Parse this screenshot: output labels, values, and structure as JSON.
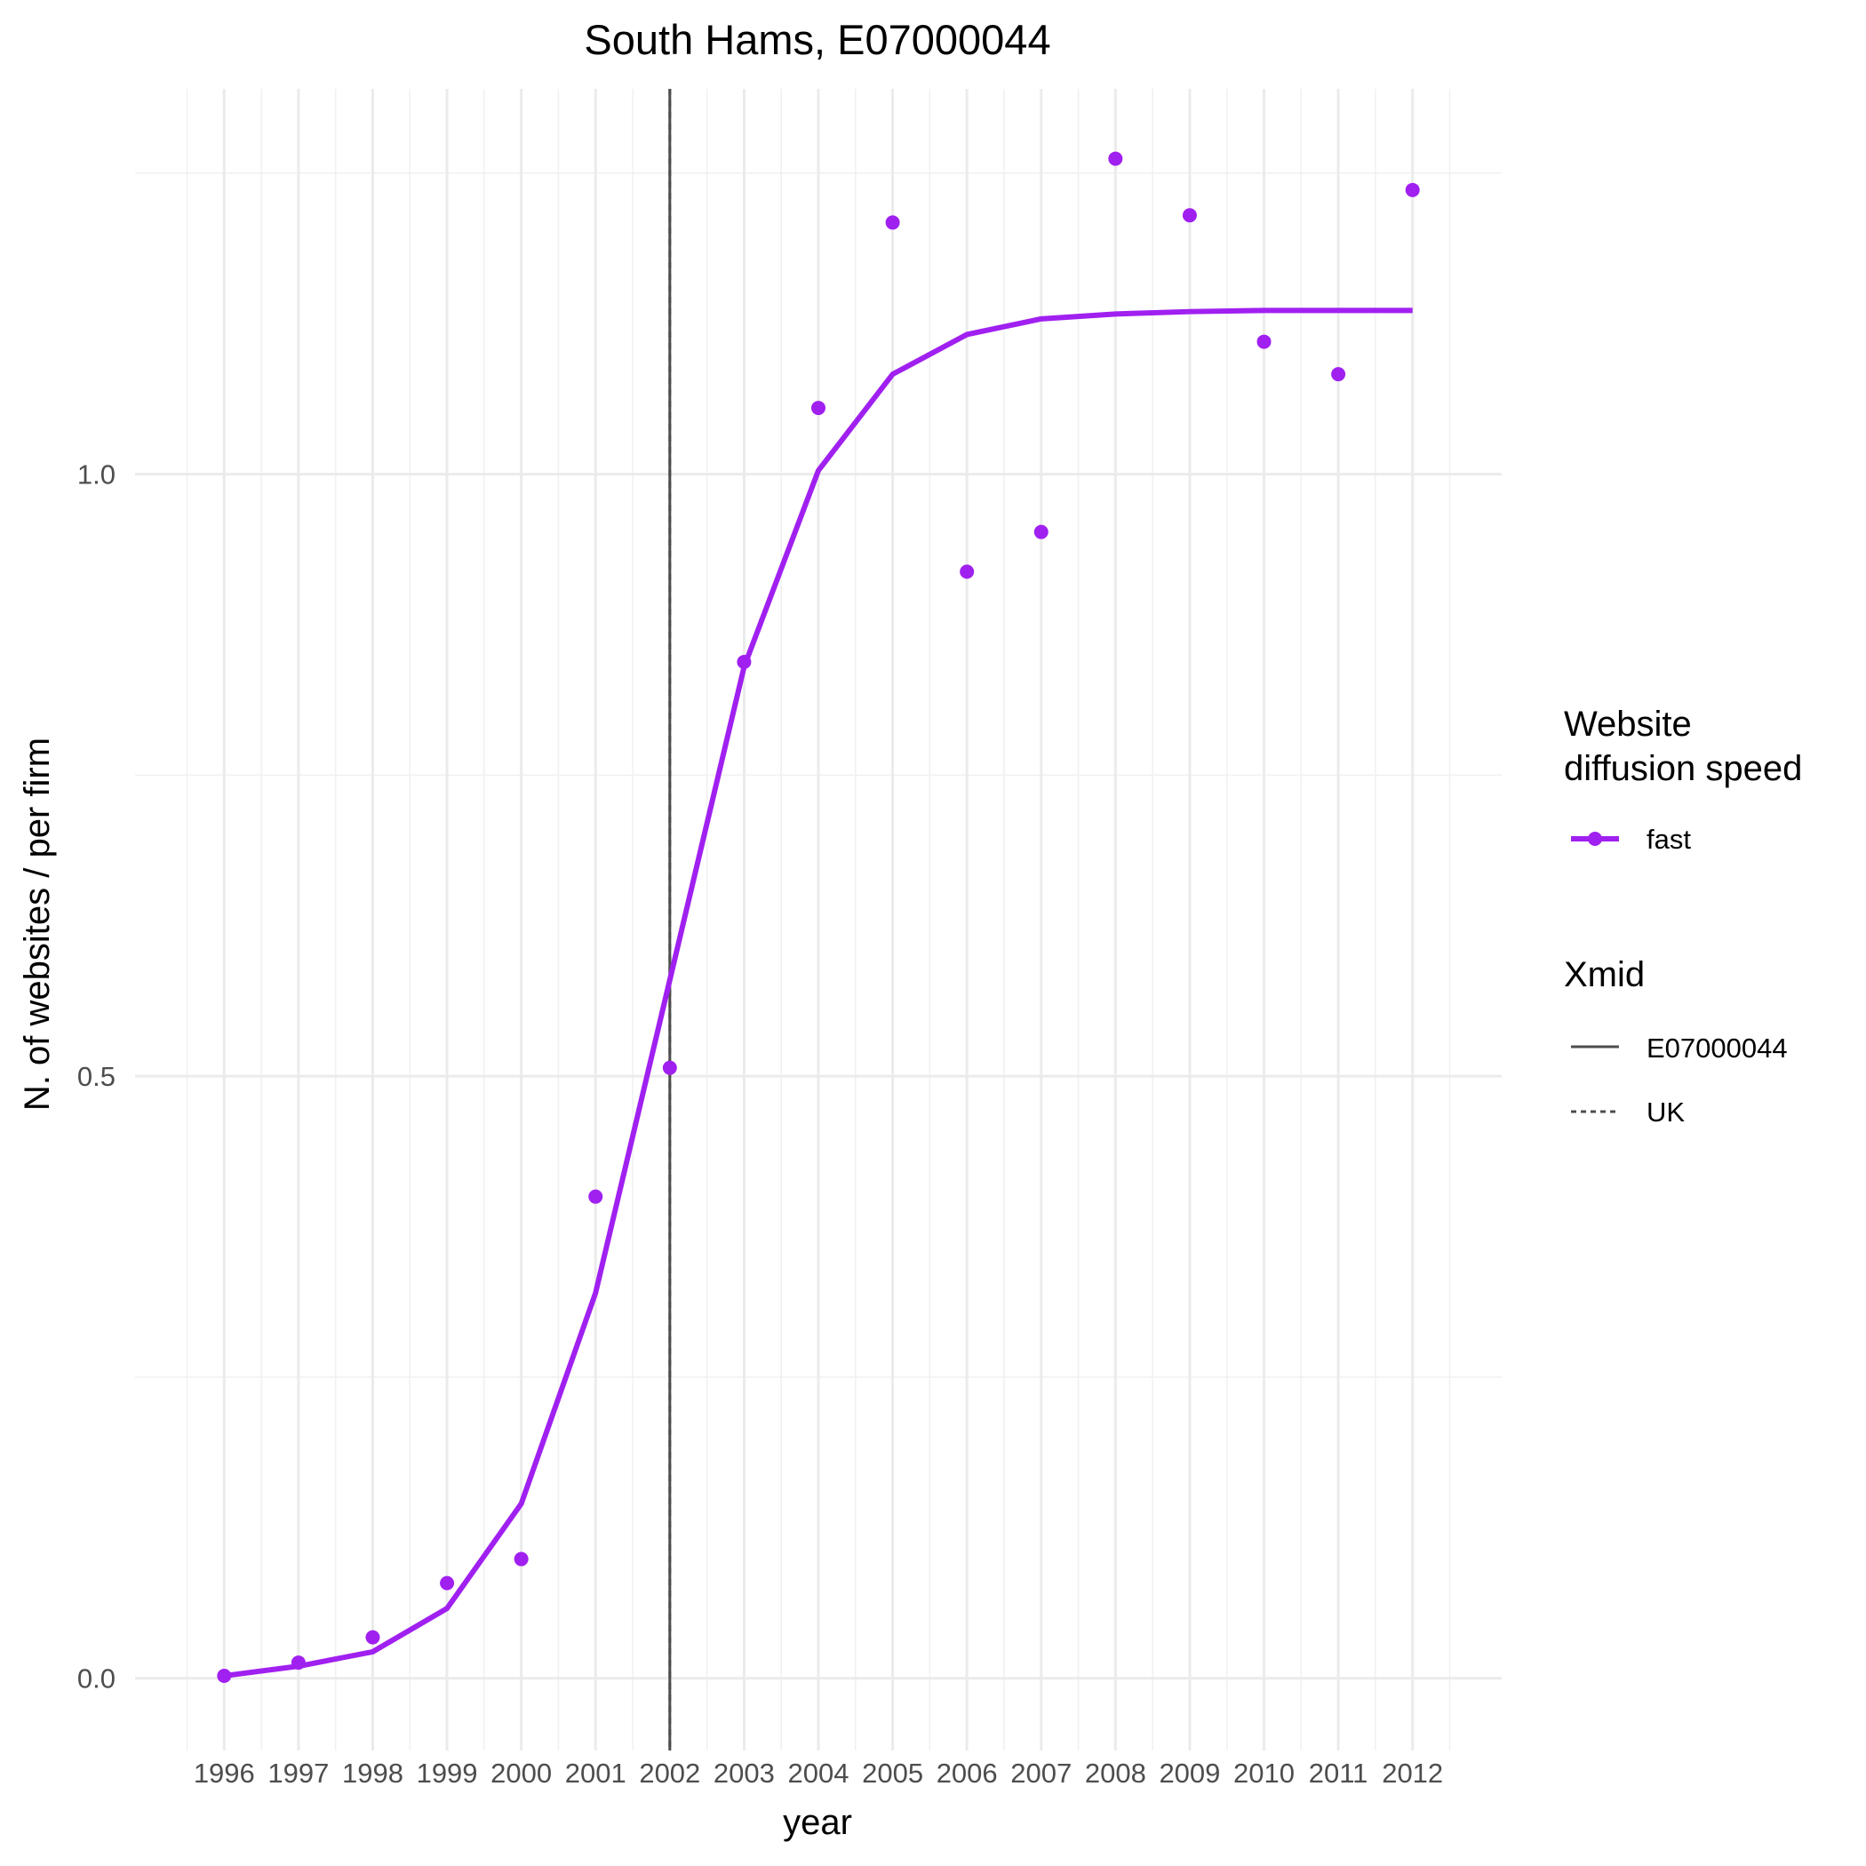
{
  "chart_data": {
    "type": "line",
    "title": "South Hams, E07000044",
    "xlabel": "year",
    "ylabel": "N. of websites / per firm",
    "x": [
      1996,
      1997,
      1998,
      1999,
      2000,
      2001,
      2002,
      2003,
      2004,
      2005,
      2006,
      2007,
      2008,
      2009,
      2010,
      2011,
      2012
    ],
    "xlim": [
      1994.8,
      2013.2
    ],
    "ylim": [
      -0.06,
      1.32
    ],
    "yticks": [
      0.0,
      0.5,
      1.0
    ],
    "ytick_labels": [
      "0.0",
      "0.5",
      "1.0"
    ],
    "grid": true,
    "legend_position": "right",
    "series": [
      {
        "name": "fast",
        "color": "#a020f0",
        "fitted": [
          0.002,
          0.01,
          0.022,
          0.058,
          0.145,
          0.32,
          0.58,
          0.84,
          1.003,
          1.083,
          1.116,
          1.129,
          1.133,
          1.135,
          1.136,
          1.136,
          1.136
        ],
        "observed": [
          0.002,
          0.013,
          0.034,
          0.079,
          0.099,
          0.4,
          0.507,
          0.844,
          1.055,
          1.209,
          0.919,
          0.952,
          1.262,
          1.215,
          1.11,
          1.083,
          1.236
        ]
      }
    ],
    "vlines": [
      {
        "x": 2002.0,
        "style": "solid",
        "color": "#4d4d4d"
      },
      {
        "x": 2002.0,
        "style": "dashed",
        "color": "#4d4d4d"
      }
    ],
    "legends": [
      {
        "title_lines": [
          "Website",
          "diffusion speed"
        ],
        "entries": [
          {
            "label": "fast",
            "kind": "line-point",
            "color": "#a020f0"
          }
        ]
      },
      {
        "title_lines": [
          "Xmid"
        ],
        "entries": [
          {
            "label": "E07000044",
            "kind": "solid"
          },
          {
            "label": "UK",
            "kind": "dashed"
          }
        ]
      }
    ]
  }
}
